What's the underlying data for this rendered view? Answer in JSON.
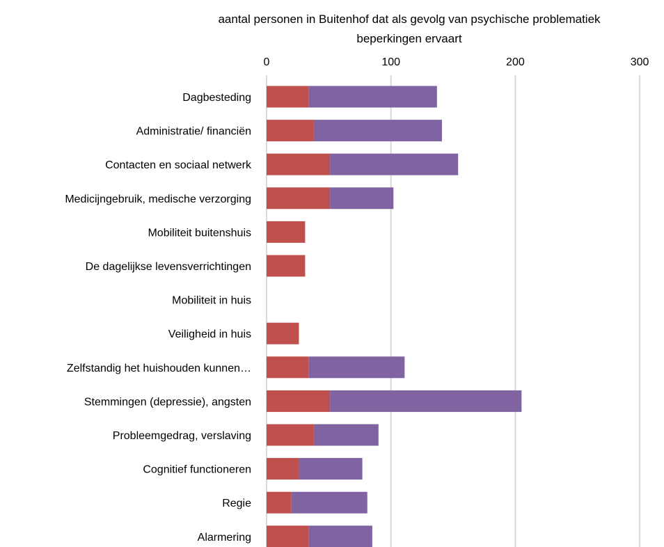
{
  "chart_data": {
    "type": "bar",
    "orientation": "horizontal",
    "stacked": true,
    "title_lines": [
      "aantal personen in Buitenhof dat als gevolg van psychische  problematiek",
      "beperkingen ervaart"
    ],
    "xlim": [
      0,
      300
    ],
    "x_ticks": [
      "0",
      "100",
      "200",
      "300"
    ],
    "x_tick_values": [
      0,
      100,
      200,
      300
    ],
    "x_axis_position": "top",
    "grid": true,
    "legend": "none",
    "categories": [
      "Dagbesteding",
      "Administratie/ financiën",
      "Contacten en sociaal netwerk",
      "Medicijngebruik, medische verzorging",
      "Mobiliteit buitenshuis",
      "De dagelijkse levensverrichtingen",
      "Mobiliteit in huis",
      "Veiligheid in huis",
      "Zelfstandig het huishouden kunnen…",
      "Stemmingen (depressie), angsten",
      "Probleemgedrag, verslaving",
      "Cognitief functioneren",
      "Regie",
      "Alarmering"
    ],
    "series": [
      {
        "color": "#c0504d",
        "values": [
          34,
          38,
          51,
          51,
          31,
          31,
          0,
          26,
          34,
          51,
          38,
          26,
          20,
          34
        ]
      },
      {
        "color": "#8064a2",
        "values": [
          103,
          103,
          103,
          51,
          0,
          0,
          0,
          0,
          77,
          154,
          52,
          51,
          61,
          51
        ]
      }
    ]
  }
}
